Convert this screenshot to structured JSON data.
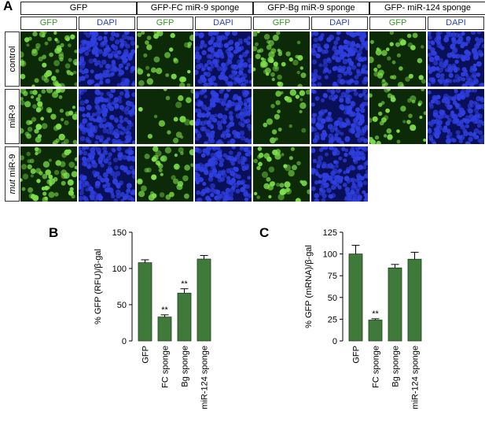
{
  "panel_a": {
    "letter": "A",
    "constructs": [
      "GFP",
      "GFP-FC miR-9 sponge",
      "GFP-Bg miR-9 sponge",
      "GFP- miR-124 sponge"
    ],
    "channels": [
      "GFP",
      "DAPI"
    ],
    "rows": [
      {
        "label": "control",
        "label_prefix": ""
      },
      {
        "label": "miR-9",
        "label_prefix": ""
      },
      {
        "label": " miR-9",
        "label_prefix": "mut"
      }
    ],
    "colors": {
      "gfp_bg": "#0d2a08",
      "gfp_cell": "#7ee04a",
      "dapi_bg": "#0a0f5a",
      "dapi_cell": "#2f3fe0",
      "gfp_label": "#3a9a2a",
      "dapi_label": "#2a3fbf"
    },
    "gfp_density": [
      [
        0.9,
        0.45,
        0.7,
        0.55
      ],
      [
        0.85,
        0.15,
        0.25,
        0.5
      ],
      [
        0.85,
        0.55,
        0.6,
        null
      ]
    ]
  },
  "chart_data": [
    {
      "panel": "B",
      "type": "bar",
      "categories": [
        "GFP",
        "FC sponge",
        "Bg sponge",
        "miR-124 sponge"
      ],
      "values": [
        108,
        33,
        66,
        113
      ],
      "errors": [
        4,
        3,
        6,
        5
      ],
      "annotations": [
        "",
        "**",
        "**",
        ""
      ],
      "ylabel": "% GFP (RFU)/β-gal",
      "ylim": [
        0,
        150
      ],
      "yticks": [
        "0",
        "50",
        "100",
        "150"
      ],
      "bar_color": "#3f7a3a"
    },
    {
      "panel": "C",
      "type": "bar",
      "categories": [
        "GFP",
        "FC sponge",
        "Bg sponge",
        "miR-124 sponge"
      ],
      "values": [
        100,
        24,
        84,
        94
      ],
      "errors": [
        10,
        1.5,
        4,
        8
      ],
      "annotations": [
        "",
        "**",
        "",
        ""
      ],
      "ylabel": "% GFP (mRNA)/β-gal",
      "ylim": [
        0,
        125
      ],
      "yticks": [
        "0",
        "25",
        "50",
        "75",
        "100",
        "125"
      ],
      "bar_color": "#3f7a3a"
    }
  ]
}
